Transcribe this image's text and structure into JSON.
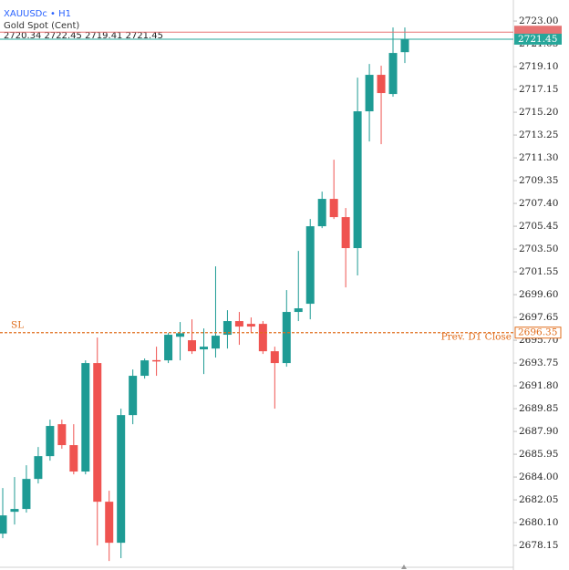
{
  "chart_data": {
    "type": "candlestick",
    "symbol": "XAUUSDc • H1",
    "subtitle": "Gold Spot (Cent)",
    "ohlc_readout": "2720.34 2722.45 2719.41 2721.45",
    "up_color": "#1e9b94",
    "down_color": "#ef5350",
    "open": [
      2679.16,
      2681.03,
      2681.27,
      2683.84,
      2685.79,
      2688.52,
      2686.73,
      2684.47,
      2693.75,
      2681.89,
      2678.38,
      2689.3,
      2692.66,
      2694.0,
      2693.98,
      2696.0,
      2695.7,
      2694.92,
      2694.99,
      2696.17,
      2697.34,
      2697.1,
      2697.1,
      2694.76,
      2693.75,
      2698.12,
      2698.82,
      2705.45,
      2707.79,
      2706.23,
      2703.58,
      2715.28,
      2718.4,
      2716.76,
      2720.34
    ],
    "high": [
      2683.06,
      2684.0,
      2685.01,
      2686.57,
      2688.91,
      2688.91,
      2688.52,
      2693.98,
      2695.93,
      2682.83,
      2689.85,
      2693.2,
      2694.14,
      2695.15,
      2696.32,
      2697.26,
      2697.49,
      2696.71,
      2702.02,
      2698.27,
      2698.12,
      2697.65,
      2697.34,
      2695.15,
      2699.99,
      2703.34,
      2706.07,
      2708.41,
      2711.14,
      2707.01,
      2718.16,
      2719.33,
      2719.18,
      2722.45,
      2722.45
    ],
    "low": [
      2678.77,
      2679.94,
      2680.96,
      2683.45,
      2685.4,
      2686.42,
      2684.23,
      2684.23,
      2678.15,
      2676.82,
      2677.06,
      2688.52,
      2692.42,
      2692.66,
      2693.75,
      2693.98,
      2694.53,
      2692.81,
      2694.22,
      2694.99,
      2695.31,
      2696.32,
      2694.53,
      2689.85,
      2693.44,
      2697.34,
      2697.49,
      2705.29,
      2706.07,
      2700.22,
      2701.24,
      2712.7,
      2712.47,
      2716.53,
      2719.41
    ],
    "close": [
      2680.72,
      2681.27,
      2683.84,
      2685.79,
      2688.37,
      2686.73,
      2684.47,
      2693.75,
      2681.89,
      2678.38,
      2689.3,
      2692.66,
      2693.98,
      2693.9,
      2696.17,
      2696.3,
      2694.76,
      2695.15,
      2696.09,
      2697.34,
      2696.87,
      2696.87,
      2694.76,
      2693.75,
      2698.12,
      2698.43,
      2705.45,
      2707.79,
      2706.23,
      2703.58,
      2715.28,
      2718.4,
      2716.84,
      2720.27,
      2721.45
    ],
    "ylim": [
      2676.05,
      2724.8
    ],
    "yticks": [
      {
        "value": 2723,
        "label": "2723.00"
      },
      2721.05,
      {
        "value": 2719.1,
        "label": "2719.10"
      },
      2717.15,
      {
        "value": 2715.2,
        "label": "2715.20"
      },
      2713.25,
      {
        "value": 2711.3,
        "label": "2711.30"
      },
      2709.35,
      {
        "value": 2707.4,
        "label": "2707.40"
      },
      2705.45,
      {
        "value": 2703.5,
        "label": "2703.50"
      },
      2701.55,
      {
        "value": 2699.6,
        "label": "2699.60"
      },
      2697.65,
      {
        "value": 2695.7,
        "label": "2695.70"
      },
      2693.75,
      {
        "value": 2691.8,
        "label": "2691.80"
      },
      2689.85,
      {
        "value": 2687.9,
        "label": "2687.90"
      },
      2685.95,
      {
        "value": 2684,
        "label": "2684.00"
      },
      2682.05,
      {
        "value": 2680.1,
        "label": "2680.10"
      },
      2678.15
    ],
    "ask_price": 2722.05,
    "ask_color": "#e57373",
    "bid_price": 2721.45,
    "bid_color": "#26a69a",
    "sl_level": {
      "label": "SL",
      "price": 2696.35,
      "note": "Prev. D1 Close",
      "color": "#e06c1a"
    }
  }
}
